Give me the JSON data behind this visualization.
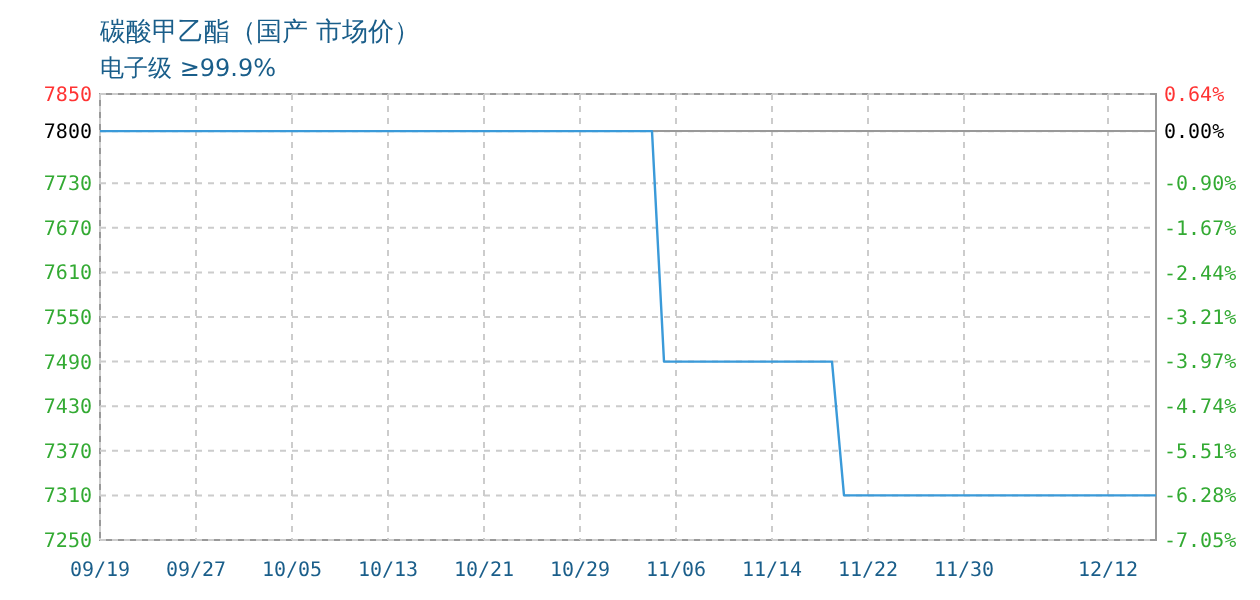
{
  "chart_data": {
    "type": "line",
    "title": "碳酸甲乙酯（国产 市场价）",
    "subtitle": "电子级 ≥99.9%",
    "x": [
      "--09-19",
      "--11-04",
      "--11-05",
      "--11-19",
      "--11-20",
      "--12-16"
    ],
    "series": [
      {
        "color": "#3a9ad9",
        "values": [
          7800,
          7800,
          7490,
          7490,
          7310,
          7310
        ]
      }
    ],
    "xlim": [
      "--09-19",
      "--12-16"
    ],
    "xticks": [
      {
        "value": "--09-19",
        "label": "09/19"
      },
      {
        "value": "--09-27",
        "label": "09/27"
      },
      {
        "value": "--10-05",
        "label": "10/05"
      },
      {
        "value": "--10-13",
        "label": "10/13"
      },
      {
        "value": "--10-21",
        "label": "10/21"
      },
      {
        "value": "--10-29",
        "label": "10/29"
      },
      {
        "value": "--11-06",
        "label": "11/06"
      },
      {
        "value": "--11-14",
        "label": "11/14"
      },
      {
        "value": "--11-22",
        "label": "11/22"
      },
      {
        "value": "--11-30",
        "label": "11/30"
      },
      {
        "value": "--12-12",
        "label": "12/12"
      }
    ],
    "ylim": [
      7250,
      7850
    ],
    "yticks": [
      7850,
      7800,
      7730,
      7670,
      7610,
      7550,
      7490,
      7430,
      7370,
      7310,
      7250
    ],
    "y2lim": [
      -7.05,
      0.64
    ],
    "y2ticks": [
      {
        "value": 0.64,
        "label": "0.64%"
      },
      {
        "value": 0,
        "label": "0.00%"
      },
      {
        "value": -0.9,
        "label": "-0.90%"
      },
      {
        "value": -1.67,
        "label": "-1.67%"
      },
      {
        "value": -2.44,
        "label": "-2.44%"
      },
      {
        "value": -3.21,
        "label": "-3.21%"
      },
      {
        "value": -3.97,
        "label": "-3.97%"
      },
      {
        "value": -4.74,
        "label": "-4.74%"
      },
      {
        "value": -5.51,
        "label": "-5.51%"
      },
      {
        "value": -6.28,
        "label": "-6.28%"
      },
      {
        "value": -7.05,
        "label": "-7.05%"
      }
    ],
    "grid": true,
    "marker": "none",
    "line_style": "solid"
  }
}
